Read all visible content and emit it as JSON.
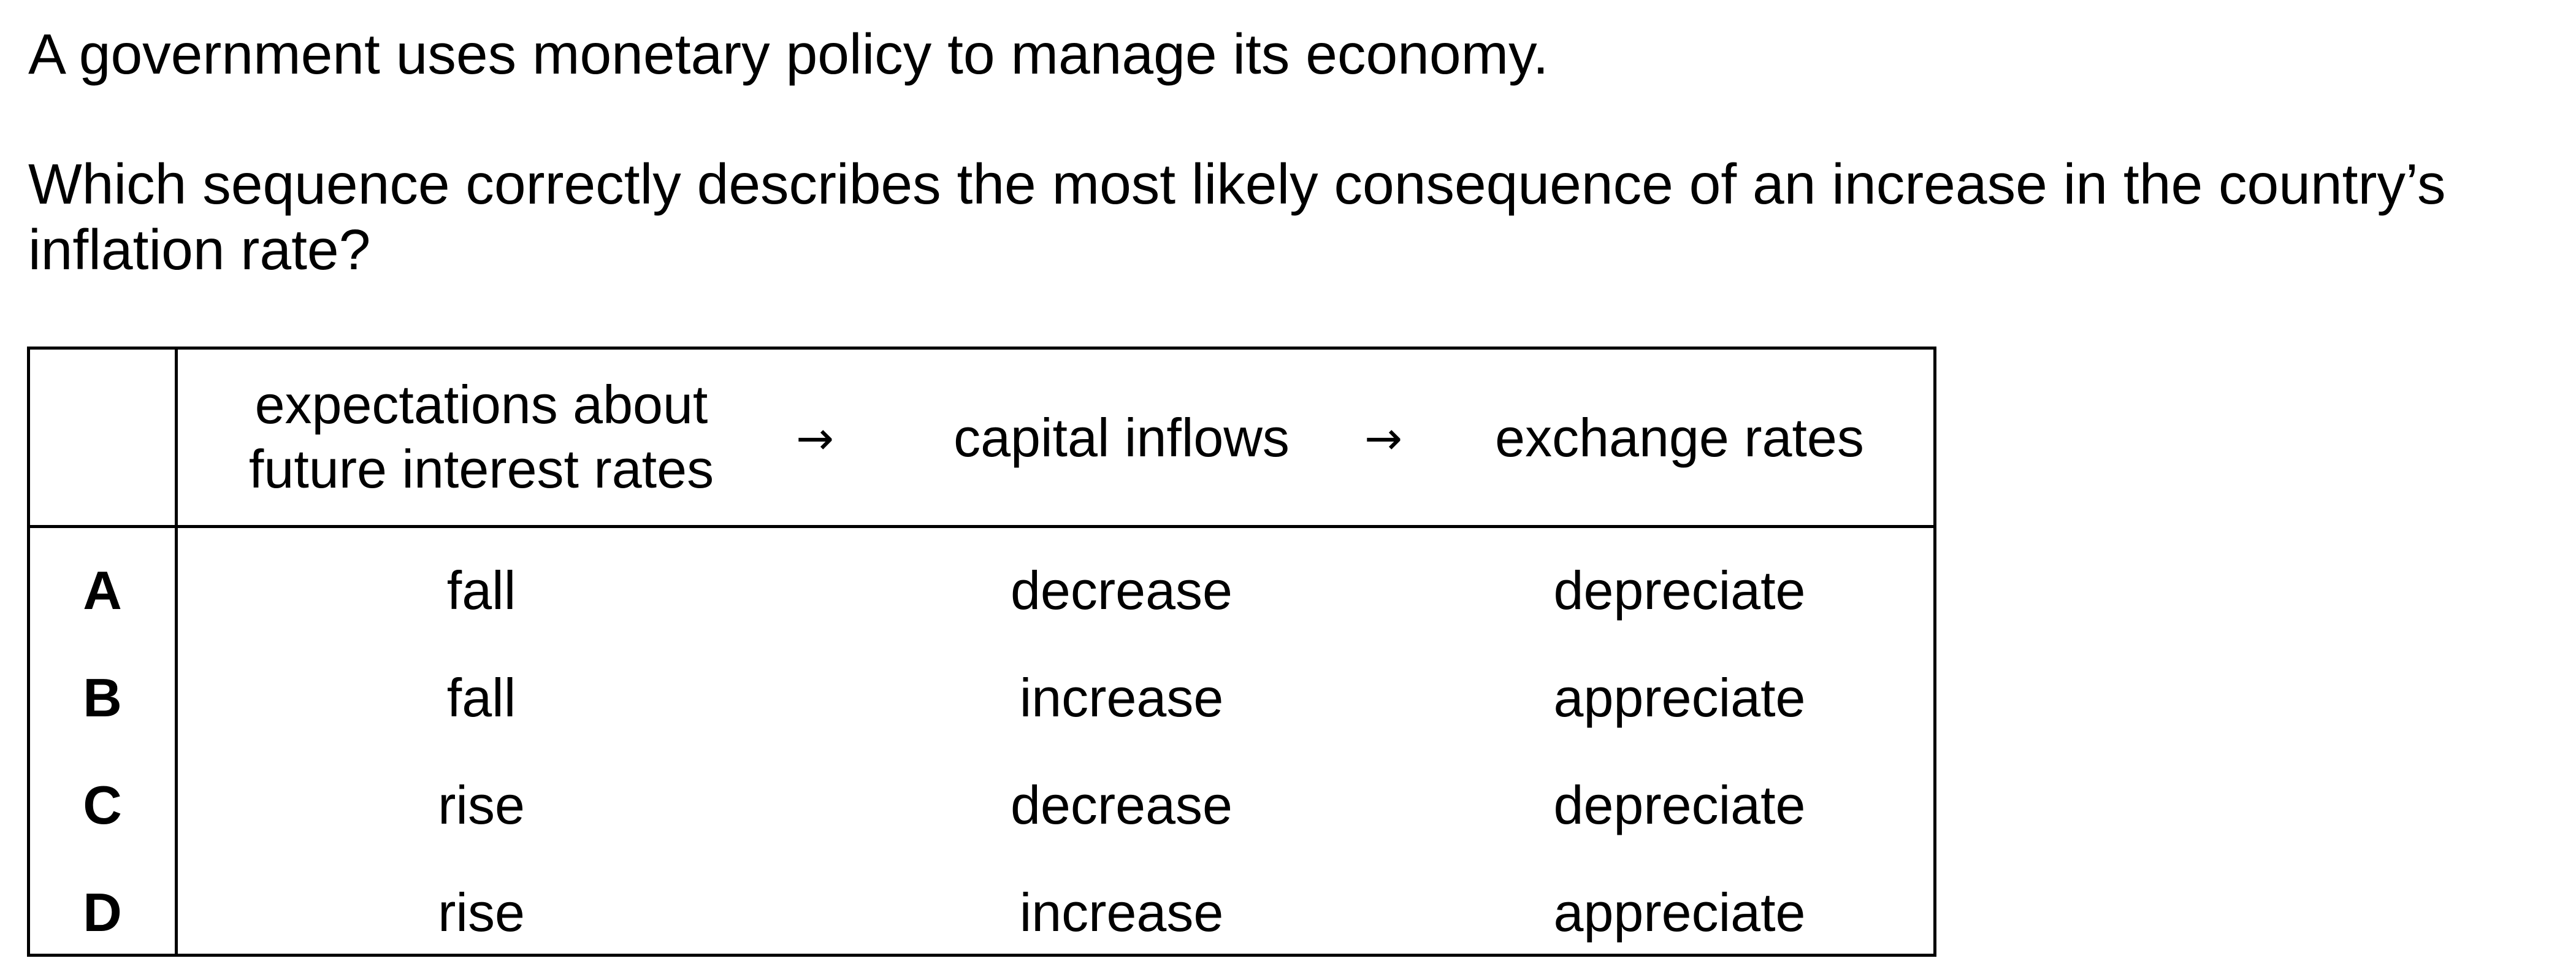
{
  "intro": "A government uses monetary policy to manage its economy.",
  "question": {
    "line1": "Which sequence correctly describes the most likely consequence of an increase in the country’s",
    "line2": "inflation rate?"
  },
  "table": {
    "headers": {
      "col1_line1": "expectations about",
      "col1_line2": "future interest rates",
      "arrow1": "→",
      "col2": "capital inflows",
      "arrow2": "→",
      "col3": "exchange rates"
    },
    "rows": [
      {
        "label": "A",
        "col1": "fall",
        "col2": "decrease",
        "col3": "depreciate"
      },
      {
        "label": "B",
        "col1": "fall",
        "col2": "increase",
        "col3": "appreciate"
      },
      {
        "label": "C",
        "col1": "rise",
        "col2": "decrease",
        "col3": "depreciate"
      },
      {
        "label": "D",
        "col1": "rise",
        "col2": "increase",
        "col3": "appreciate"
      }
    ]
  }
}
